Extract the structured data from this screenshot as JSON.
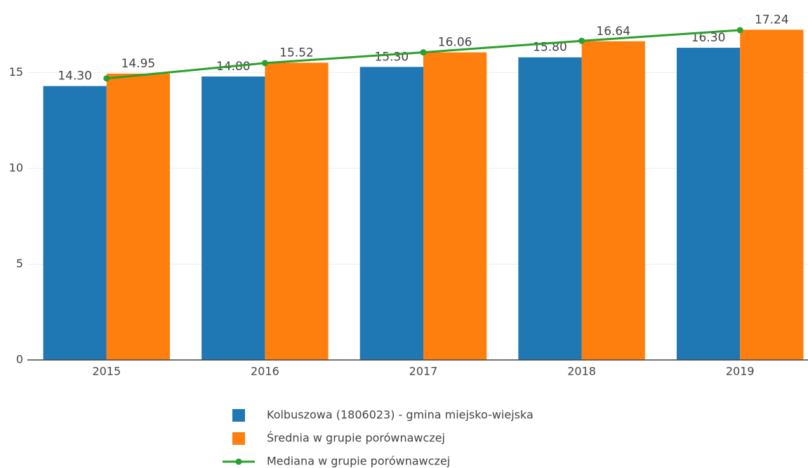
{
  "chart_data": {
    "type": "bar",
    "categories": [
      "2015",
      "2016",
      "2017",
      "2018",
      "2019"
    ],
    "series": [
      {
        "name": "Kolbuszowa (1806023) - gmina miejsko-wiejska",
        "color": "#1f77b4",
        "type": "bar",
        "values": [
          14.3,
          14.8,
          15.3,
          15.8,
          16.3
        ],
        "value_labels": [
          "14.30",
          "14.80",
          "15.30",
          "15.80",
          "16.30"
        ]
      },
      {
        "name": "Średnia w grupie porównawczej",
        "color": "#ff7f0e",
        "type": "bar",
        "values": [
          14.95,
          15.52,
          16.06,
          16.64,
          17.24
        ],
        "value_labels": [
          "14.95",
          "15.52",
          "16.06",
          "16.64",
          "17.24"
        ]
      },
      {
        "name": "Mediana w grupie porównawczej",
        "color": "#2ca02c",
        "type": "line",
        "values": [
          14.7,
          15.5,
          16.06,
          16.66,
          17.22
        ]
      }
    ],
    "ylim": [
      0,
      18.5
    ],
    "yticks": [
      0,
      5,
      10,
      15
    ],
    "grid": true
  }
}
